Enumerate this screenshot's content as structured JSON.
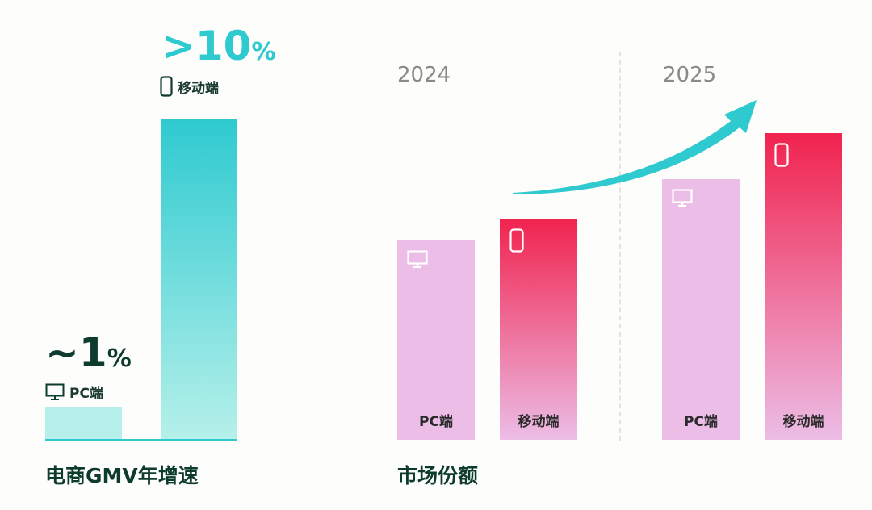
{
  "colors": {
    "teal": "#2ecad0",
    "teal_light": "#b6f0ea",
    "pink": "#ecbde6",
    "red": "#f0234e",
    "dark": "#0d3b2e",
    "gray": "#8a8a8a"
  },
  "chart_data": [
    {
      "type": "bar",
      "title": "电商GMV年增速",
      "categories": [
        "PC端",
        "移动端"
      ],
      "values": [
        1,
        10
      ],
      "data_labels": [
        "~1%",
        ">10%"
      ],
      "icons": [
        "monitor-icon",
        "phone-icon"
      ],
      "ylim": [
        0,
        10
      ]
    },
    {
      "type": "bar",
      "title": "市场份额",
      "groups": [
        "2024",
        "2025"
      ],
      "categories": [
        "PC端",
        "移动端"
      ],
      "series": [
        {
          "group": "2024",
          "name": "PC端",
          "value": 65
        },
        {
          "group": "2024",
          "name": "移动端",
          "value": 72
        },
        {
          "group": "2025",
          "name": "PC端",
          "value": 85
        },
        {
          "group": "2025",
          "name": "移动端",
          "value": 100
        }
      ],
      "ylim": [
        0,
        100
      ],
      "annotation": "upward-trend-arrow"
    }
  ],
  "left": {
    "pc_value_prefix": "~1",
    "pc_value_suffix": "%",
    "pc_label": "PC端",
    "mobile_value_prefix": ">10",
    "mobile_value_suffix": "%",
    "mobile_label": "移动端",
    "title": "电商GMV年增速"
  },
  "right": {
    "year1": "2024",
    "year2": "2025",
    "pc_label": "PC端",
    "mobile_label": "移动端",
    "title": "市场份额"
  }
}
